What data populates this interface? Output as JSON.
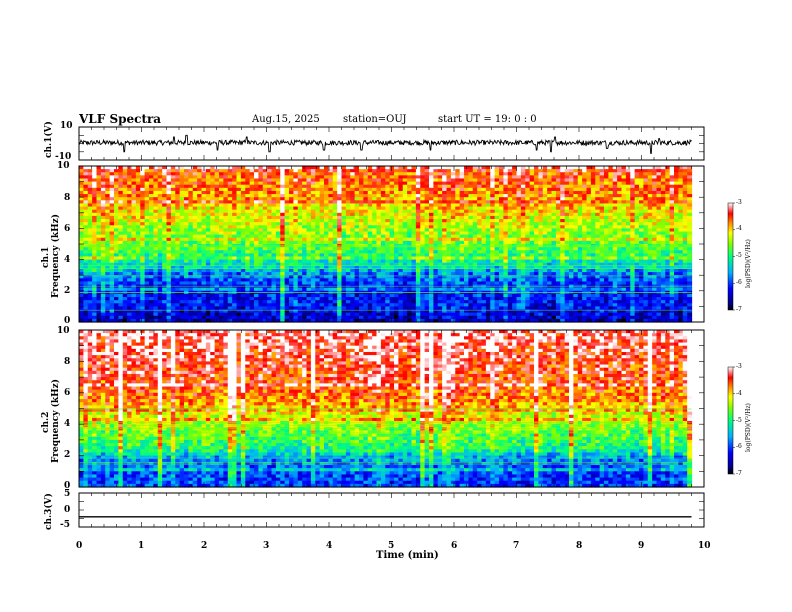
{
  "chart_data": [
    {
      "type": "line",
      "panel": "ch1-waveform",
      "title": "VLF Spectra",
      "date": "Aug.15, 2025",
      "station": "station=OUJ",
      "start_ut": "start  UT =   19: 0  : 0",
      "ylabel": "ch.1(V)",
      "ylim": [
        -10,
        10
      ],
      "yticks": [
        "10",
        "-10"
      ],
      "baseline": 0.5,
      "noise_amplitude": 1.5,
      "spikes": [
        {
          "t": 0.72,
          "v": -5
        },
        {
          "t": 1.52,
          "v": 4
        },
        {
          "t": 1.72,
          "v": 5
        },
        {
          "t": 2.22,
          "v": -4
        },
        {
          "t": 2.68,
          "v": 4
        },
        {
          "t": 3.05,
          "v": -5
        },
        {
          "t": 3.92,
          "v": -4
        },
        {
          "t": 4.52,
          "v": -4
        },
        {
          "t": 5.62,
          "v": -4
        },
        {
          "t": 7.32,
          "v": -4
        },
        {
          "t": 7.55,
          "v": -5
        },
        {
          "t": 7.62,
          "v": 4
        },
        {
          "t": 8.45,
          "v": -3
        },
        {
          "t": 9.15,
          "v": -6
        },
        {
          "t": 9.28,
          "v": 3
        }
      ]
    },
    {
      "type": "heatmap",
      "panel": "ch1-spectrogram",
      "ylabel": "ch.1",
      "ylabel2": "Frequency (kHz)",
      "ylim": [
        0,
        10
      ],
      "yticks": [
        "0",
        "2",
        "4",
        "6",
        "8",
        "10"
      ],
      "xlim": [
        0,
        9.8
      ],
      "quantity_min": -7,
      "quantity_max": -3,
      "profile": [
        {
          "f": 0,
          "v": -6.7
        },
        {
          "f": 1.0,
          "v": -6.4
        },
        {
          "f": 2.0,
          "v": -6.3
        },
        {
          "f": 3.0,
          "v": -6.0
        },
        {
          "f": 3.5,
          "v": -5.5
        },
        {
          "f": 4.5,
          "v": -5.0
        },
        {
          "f": 5.5,
          "v": -4.7
        },
        {
          "f": 7.0,
          "v": -4.3
        },
        {
          "f": 8.5,
          "v": -3.9
        },
        {
          "f": 10,
          "v": -3.6
        }
      ],
      "colorbar": {
        "ticks": [
          "-3",
          "-4",
          "-5",
          "-6",
          "-7"
        ],
        "label": "log(PSD)(V²/Hz)"
      }
    },
    {
      "type": "heatmap",
      "panel": "ch2-spectrogram",
      "ylabel": "ch.2",
      "ylabel2": "Frequency (kHz)",
      "ylim": [
        0,
        10
      ],
      "yticks": [
        "0",
        "2",
        "4",
        "6",
        "8",
        "10"
      ],
      "xlim": [
        0,
        9.8
      ],
      "quantity_min": -7,
      "quantity_max": -3,
      "profile": [
        {
          "f": 0,
          "v": -6.2
        },
        {
          "f": 1.0,
          "v": -6.1
        },
        {
          "f": 1.8,
          "v": -5.8
        },
        {
          "f": 2.5,
          "v": -5.1
        },
        {
          "f": 3.5,
          "v": -4.8
        },
        {
          "f": 4.5,
          "v": -4.4
        },
        {
          "f": 5.5,
          "v": -3.9
        },
        {
          "f": 7.0,
          "v": -3.6
        },
        {
          "f": 10,
          "v": -3.3
        }
      ],
      "colorbar": {
        "ticks": [
          "-3",
          "-4",
          "-5",
          "-6",
          "-7"
        ],
        "label": "log(PSD)(V²/Hz)"
      }
    },
    {
      "type": "line",
      "panel": "ch3-waveform",
      "ylabel": "ch.3(V)",
      "ylim": [
        -5,
        5
      ],
      "yticks": [
        "5",
        "0",
        "-5"
      ],
      "x": [
        0,
        9.8
      ],
      "y": [
        -2,
        -2
      ]
    }
  ],
  "x_axis": {
    "label": "Time  (min)",
    "ticks": [
      "0",
      "1",
      "2",
      "3",
      "4",
      "5",
      "6",
      "7",
      "8",
      "9",
      "10"
    ],
    "xlim": [
      0,
      10
    ]
  }
}
